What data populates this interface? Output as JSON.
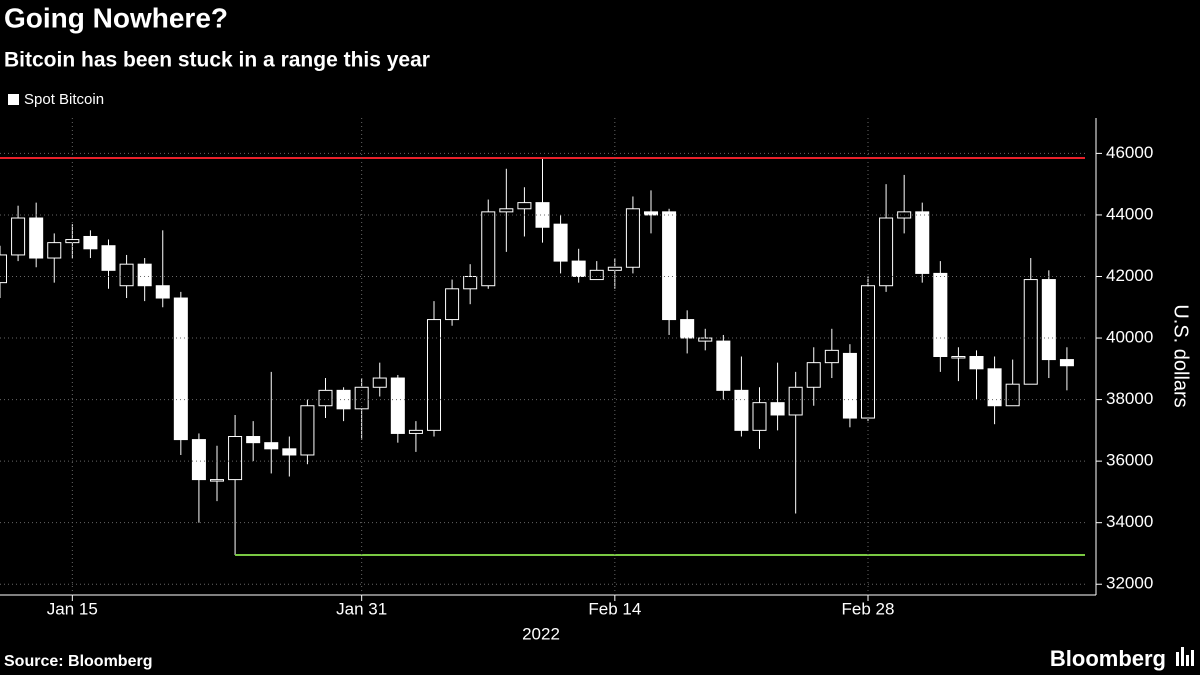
{
  "chart_data": {
    "type": "candlestick",
    "title": "Going Nowhere?",
    "subtitle": "Bitcoin has been stuck in a range this year",
    "y_label": "U.S. dollars",
    "x_label": "2022",
    "source": "Source: Bloomberg",
    "brand": "Bloomberg",
    "x": [
      "2022-01-11",
      "2022-01-12",
      "2022-01-13",
      "2022-01-14",
      "2022-01-15",
      "2022-01-16",
      "2022-01-17",
      "2022-01-18",
      "2022-01-19",
      "2022-01-20",
      "2022-01-21",
      "2022-01-22",
      "2022-01-23",
      "2022-01-24",
      "2022-01-25",
      "2022-01-26",
      "2022-01-27",
      "2022-01-28",
      "2022-01-29",
      "2022-01-30",
      "2022-01-31",
      "2022-02-01",
      "2022-02-02",
      "2022-02-03",
      "2022-02-04",
      "2022-02-05",
      "2022-02-06",
      "2022-02-07",
      "2022-02-08",
      "2022-02-09",
      "2022-02-10",
      "2022-02-11",
      "2022-02-12",
      "2022-02-13",
      "2022-02-14",
      "2022-02-15",
      "2022-02-16",
      "2022-02-17",
      "2022-02-18",
      "2022-02-19",
      "2022-02-20",
      "2022-02-21",
      "2022-02-22",
      "2022-02-23",
      "2022-02-24",
      "2022-02-25",
      "2022-02-26",
      "2022-02-27",
      "2022-02-28",
      "2022-03-01",
      "2022-03-02",
      "2022-03-03",
      "2022-03-04",
      "2022-03-05",
      "2022-03-06",
      "2022-03-07",
      "2022-03-08",
      "2022-03-09",
      "2022-03-10",
      "2022-03-11"
    ],
    "series": [
      {
        "name": "Spot Bitcoin",
        "color": "#ffffff",
        "open": [
          41800,
          42700,
          43900,
          42600,
          43100,
          43300,
          43000,
          41700,
          42400,
          41700,
          41300,
          36700,
          35400,
          35400,
          36800,
          36600,
          36400,
          36200,
          37800,
          38300,
          37700,
          38400,
          38700,
          36900,
          37000,
          40600,
          41600,
          41700,
          44100,
          44200,
          44400,
          43700,
          42500,
          41900,
          42200,
          42300,
          44100,
          44100,
          40600,
          39900,
          39900,
          38300,
          37000,
          37900,
          37500,
          38400,
          39200,
          39500,
          37400,
          41700,
          43900,
          44100,
          42100,
          39400,
          39400,
          39000,
          37800,
          38500,
          41900,
          39300
        ],
        "high": [
          43000,
          44300,
          44400,
          43400,
          43700,
          43500,
          43200,
          42700,
          42600,
          43500,
          41500,
          36900,
          36500,
          37500,
          37300,
          38900,
          36800,
          38000,
          38700,
          38400,
          38700,
          39200,
          38800,
          37300,
          41200,
          41900,
          42400,
          44500,
          45500,
          44900,
          45850,
          44000,
          42900,
          42500,
          42600,
          44600,
          44800,
          44200,
          40900,
          40300,
          40100,
          39400,
          38400,
          39200,
          38900,
          39700,
          40300,
          39800,
          42000,
          45000,
          45300,
          44400,
          42500,
          39700,
          39600,
          39400,
          39300,
          42600,
          42200,
          39700
        ],
        "low": [
          41300,
          42500,
          42300,
          41800,
          42600,
          42600,
          41600,
          41300,
          41200,
          41000,
          36200,
          34000,
          34700,
          32950,
          36000,
          35600,
          35500,
          35900,
          37400,
          37300,
          36700,
          38100,
          36600,
          36300,
          36800,
          40400,
          41100,
          41600,
          42800,
          43300,
          43100,
          42100,
          41800,
          41900,
          41600,
          42100,
          43400,
          40100,
          39500,
          39600,
          38000,
          36800,
          36400,
          37000,
          34300,
          37800,
          38700,
          37100,
          37300,
          41500,
          43400,
          41800,
          38900,
          38600,
          38000,
          37200,
          37900,
          38500,
          38700,
          38300
        ],
        "close": [
          42700,
          43900,
          42600,
          43100,
          43200,
          42900,
          42200,
          42400,
          41700,
          41300,
          36700,
          35400,
          35400,
          36800,
          36600,
          36400,
          36200,
          37800,
          38300,
          37700,
          38400,
          38700,
          36900,
          37000,
          40600,
          41600,
          42000,
          44100,
          44200,
          44400,
          43600,
          42500,
          42000,
          42200,
          42300,
          44200,
          44000,
          40600,
          40000,
          40000,
          38300,
          37000,
          37900,
          37500,
          38400,
          39200,
          39600,
          37400,
          41700,
          43900,
          44100,
          42100,
          39400,
          39400,
          39000,
          37800,
          38500,
          41900,
          39300,
          39100
        ]
      }
    ],
    "reference_lines": [
      {
        "value": 45850,
        "color": "#e8202a"
      },
      {
        "value": 32950,
        "color": "#7ac943",
        "x_start": "2022-01-24"
      }
    ],
    "xlim": [
      "2022-01-11",
      "2022-03-12"
    ],
    "xticks": [
      {
        "value": "2022-01-15",
        "label": "Jan 15"
      },
      {
        "value": "2022-01-31",
        "label": "Jan 31"
      },
      {
        "value": "2022-02-14",
        "label": "Feb 14"
      },
      {
        "value": "2022-02-28",
        "label": "Feb 28"
      }
    ],
    "ylim": [
      31650,
      47150
    ],
    "yticks": [
      32000,
      34000,
      36000,
      38000,
      40000,
      42000,
      44000,
      46000
    ],
    "grid": true,
    "legend": "top-left"
  }
}
